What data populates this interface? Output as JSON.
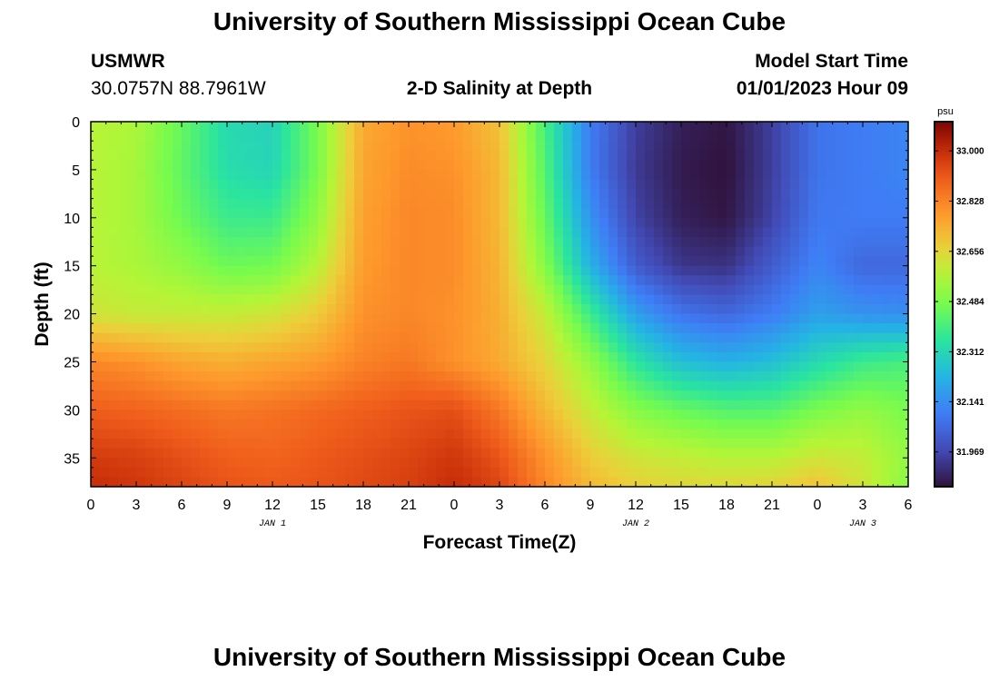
{
  "header": {
    "title": "University of Southern Mississippi Ocean Cube",
    "station_id": "USMWR",
    "coordinates": "30.0757N  88.7961W",
    "plot_title": "2-D Salinity at Depth",
    "model_start_label": "Model Start Time",
    "model_start_value": "01/01/2023 Hour 09"
  },
  "footer": {
    "title": "University of Southern Mississippi Ocean Cube"
  },
  "chart_data": {
    "type": "heatmap",
    "title": "2-D Salinity at Depth",
    "xlabel": "Forecast Time(Z)",
    "ylabel": "Depth (ft)",
    "x_unit": "hours since 2023-01-01 00Z",
    "xlim": [
      0,
      54
    ],
    "ylim": [
      0,
      38
    ],
    "y_reversed": true,
    "x_ticks": [
      0,
      3,
      6,
      9,
      12,
      15,
      18,
      21,
      24,
      27,
      30,
      33,
      36,
      39,
      42,
      45,
      48,
      51,
      54
    ],
    "x_tick_labels": [
      "0",
      "3",
      "6",
      "9",
      "12",
      "15",
      "18",
      "21",
      "0",
      "3",
      "6",
      "9",
      "12",
      "15",
      "18",
      "21",
      "0",
      "3",
      "6"
    ],
    "y_ticks": [
      0,
      5,
      10,
      15,
      20,
      25,
      30,
      35
    ],
    "y_tick_labels": [
      "0",
      "5",
      "10",
      "15",
      "20",
      "25",
      "30",
      "35"
    ],
    "day_labels": [
      {
        "x": 12,
        "label": "JAN 1"
      },
      {
        "x": 36,
        "label": "JAN 2"
      },
      {
        "x": 51,
        "label": "JAN 3"
      }
    ],
    "colorbar": {
      "unit": "psu",
      "min": 31.85,
      "max": 33.1,
      "ticks": [
        33.0,
        32.828,
        32.656,
        32.484,
        32.312,
        32.141,
        31.969
      ],
      "tick_labels": [
        "33.000",
        "32.828",
        "32.656",
        "32.484",
        "32.312",
        "32.141",
        "31.969"
      ]
    },
    "x": [
      0,
      3,
      6,
      9,
      12,
      15,
      18,
      21,
      24,
      27,
      30,
      33,
      36,
      39,
      42,
      45,
      48,
      51,
      54
    ],
    "y": [
      0,
      5,
      10,
      15,
      20,
      25,
      30,
      35,
      38
    ],
    "z": [
      [
        32.58,
        32.56,
        32.45,
        32.32,
        32.3,
        32.48,
        32.75,
        32.8,
        32.78,
        32.7,
        32.4,
        32.1,
        31.95,
        31.88,
        31.86,
        31.95,
        32.08,
        32.1,
        32.12
      ],
      [
        32.58,
        32.55,
        32.44,
        32.33,
        32.31,
        32.48,
        32.76,
        32.81,
        32.8,
        32.72,
        32.42,
        32.1,
        31.94,
        31.87,
        31.85,
        31.95,
        32.08,
        32.1,
        32.12
      ],
      [
        32.58,
        32.55,
        32.46,
        32.38,
        32.38,
        32.52,
        32.77,
        32.82,
        32.81,
        32.72,
        32.45,
        32.15,
        31.96,
        31.88,
        31.86,
        31.96,
        32.09,
        32.1,
        32.1
      ],
      [
        32.58,
        32.56,
        32.52,
        32.46,
        32.47,
        32.58,
        32.78,
        32.82,
        32.81,
        32.73,
        32.5,
        32.22,
        32.02,
        31.93,
        31.92,
        32.02,
        32.12,
        32.05,
        32.05
      ],
      [
        32.62,
        32.6,
        32.6,
        32.6,
        32.62,
        32.68,
        32.8,
        32.82,
        32.8,
        32.74,
        32.6,
        32.38,
        32.18,
        32.08,
        32.05,
        32.1,
        32.18,
        32.15,
        32.14
      ],
      [
        32.82,
        32.8,
        32.76,
        32.74,
        32.76,
        32.78,
        32.83,
        32.85,
        32.8,
        32.75,
        32.66,
        32.52,
        32.35,
        32.25,
        32.22,
        32.25,
        32.32,
        32.38,
        32.4
      ],
      [
        32.9,
        32.89,
        32.87,
        32.85,
        32.86,
        32.88,
        32.9,
        32.92,
        32.93,
        32.85,
        32.72,
        32.6,
        32.5,
        32.45,
        32.42,
        32.42,
        32.48,
        32.52,
        32.48
      ],
      [
        32.97,
        32.96,
        32.93,
        32.9,
        32.89,
        32.91,
        32.93,
        32.95,
        32.98,
        32.92,
        32.8,
        32.68,
        32.62,
        32.6,
        32.58,
        32.58,
        32.62,
        32.6,
        32.52
      ],
      [
        33.0,
        32.98,
        32.95,
        32.92,
        32.91,
        32.92,
        32.94,
        32.96,
        33.0,
        32.95,
        32.82,
        32.72,
        32.67,
        32.65,
        32.65,
        32.66,
        32.7,
        32.62,
        32.5
      ]
    ]
  }
}
